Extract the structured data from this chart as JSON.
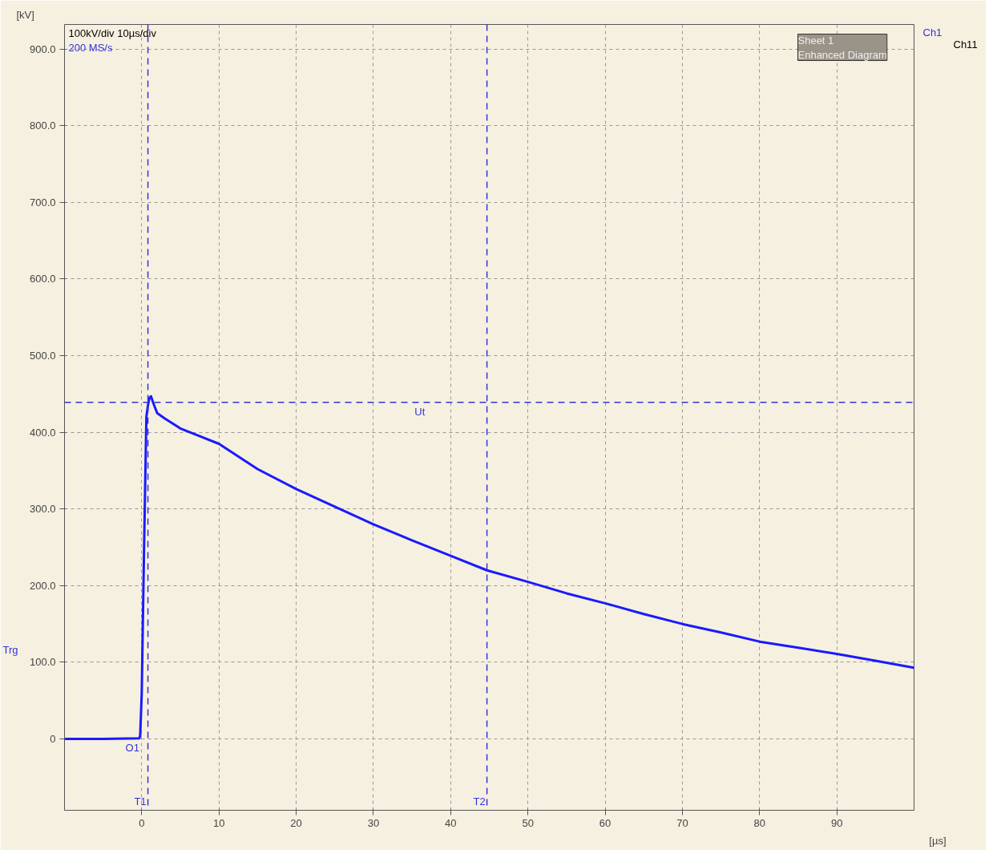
{
  "chart_data": {
    "type": "line",
    "xlabel": "[µs]",
    "ylabel": "[kV]",
    "x": [
      -10,
      -5,
      -0.3,
      -0.2,
      0,
      0.3,
      0.6,
      0.8,
      1.0,
      1.2,
      1.5,
      2,
      3,
      5,
      10,
      15,
      20,
      25,
      30,
      35,
      40,
      44.7,
      50,
      55,
      60,
      65,
      70,
      75,
      80,
      85,
      90,
      95,
      100
    ],
    "series": [
      {
        "color": "#1a1aff",
        "values": [
          0,
          0,
          1,
          5,
          60,
          250,
          420,
          435,
          445,
          447,
          438,
          425,
          418,
          405,
          385,
          352,
          326,
          303,
          280,
          259,
          239,
          220,
          205,
          190,
          177,
          163,
          150,
          139,
          127,
          119,
          111,
          102,
          93
        ]
      }
    ],
    "xlim": [
      -10,
      100
    ],
    "ylim": [
      -93,
      932
    ],
    "xticks": [
      0,
      10,
      20,
      30,
      40,
      50,
      60,
      70,
      80,
      90
    ],
    "yticks": [
      0,
      {
        "value": 100,
        "label": "100.0"
      },
      {
        "value": 200,
        "label": "200.0"
      },
      {
        "value": 300,
        "label": "300.0"
      },
      {
        "value": 400,
        "label": "400.0"
      },
      {
        "value": 500,
        "label": "500.0"
      },
      {
        "value": 600,
        "label": "600.0"
      },
      {
        "value": 700,
        "label": "700.0"
      },
      {
        "value": 800,
        "label": "800.0"
      },
      {
        "value": 900,
        "label": "900.0"
      }
    ],
    "grid": true,
    "line_style": "solid",
    "marker": "none",
    "ref_lines": [
      {
        "axis": "y",
        "value": 439,
        "label": "Ut",
        "color": "#3333dd",
        "line_style": "dashed"
      },
      {
        "axis": "x",
        "value": 0.8,
        "label": "T1",
        "color": "#3333dd",
        "line_style": "dashed"
      },
      {
        "axis": "x",
        "value": 44.7,
        "label": "T2",
        "color": "#3333dd",
        "line_style": "dashed"
      }
    ],
    "annotations": [
      "100kV/div   10µs/div",
      "200 MS/s",
      "Sheet 1\nEnhanced Diagram",
      "Ch1",
      "Ch11",
      "Trg",
      {
        "text": "O1",
        "x": 0,
        "y": 0
      }
    ]
  }
}
